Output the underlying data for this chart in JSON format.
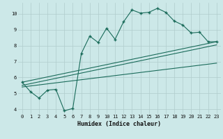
{
  "bg_color": "#cce8e8",
  "grid_color_major": "#b0cccc",
  "grid_color_minor": "#b0cccc",
  "line_color": "#1a6b5a",
  "xlabel": "Humidex (Indice chaleur)",
  "xlim": [
    -0.5,
    23.5
  ],
  "ylim": [
    3.7,
    10.7
  ],
  "yticks": [
    4,
    5,
    6,
    7,
    8,
    9,
    10
  ],
  "xticks": [
    0,
    1,
    2,
    3,
    4,
    5,
    6,
    7,
    8,
    9,
    10,
    11,
    12,
    13,
    14,
    15,
    16,
    17,
    18,
    19,
    20,
    21,
    22,
    23
  ],
  "line1_x": [
    0,
    1,
    2,
    3,
    4,
    5,
    6,
    7,
    8,
    9,
    10,
    11,
    12,
    13,
    14,
    15,
    16,
    17,
    18,
    19,
    20,
    21,
    22,
    23
  ],
  "line1_y": [
    5.7,
    5.1,
    4.7,
    5.2,
    5.25,
    3.9,
    4.05,
    7.5,
    8.6,
    8.2,
    9.1,
    8.4,
    9.5,
    10.25,
    10.05,
    10.1,
    10.35,
    10.1,
    9.55,
    9.3,
    8.8,
    8.85,
    8.25,
    8.25
  ],
  "line2_x": [
    0,
    23
  ],
  "line2_y": [
    5.7,
    8.25
  ],
  "line3_x": [
    0,
    23
  ],
  "line3_y": [
    5.5,
    8.05
  ],
  "line4_x": [
    0,
    23
  ],
  "line4_y": [
    5.4,
    6.9
  ]
}
